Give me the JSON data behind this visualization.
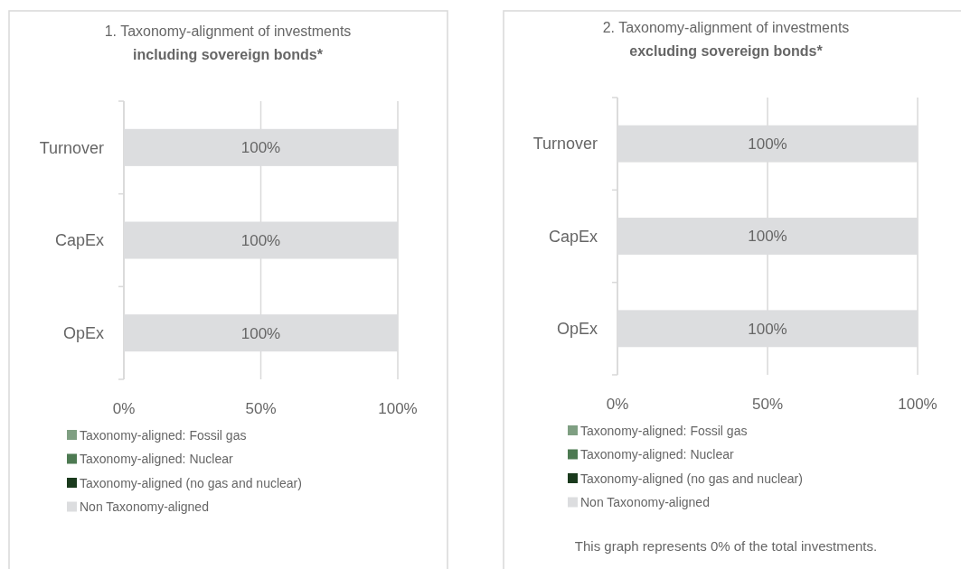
{
  "chart_data": [
    {
      "type": "bar",
      "orientation": "horizontal",
      "stacked": true,
      "title": "1. Taxonomy-alignment of investments",
      "subtitle": "including sovereign bonds*",
      "categories": [
        "Turnover",
        "CapEx",
        "OpEx"
      ],
      "xlim": [
        0,
        100
      ],
      "xticks": [
        {
          "value": 0,
          "label": "0%"
        },
        {
          "value": 50,
          "label": "50%"
        },
        {
          "value": 100,
          "label": "100%"
        }
      ],
      "grid": "x",
      "legend": "bottom",
      "series": [
        {
          "name": "Taxonomy-aligned: Fossil gas",
          "color": "#7f9f82",
          "values": [
            0,
            0,
            0
          ],
          "value_labels": [
            null,
            null,
            null
          ]
        },
        {
          "name": "Taxonomy-aligned: Nuclear",
          "color": "#4d7a52",
          "values": [
            0,
            0,
            0
          ],
          "value_labels": [
            null,
            null,
            null
          ]
        },
        {
          "name": "Taxonomy-aligned (no gas and nuclear)",
          "color": "#1a3a1d",
          "values": [
            0,
            0,
            0
          ],
          "value_labels": [
            null,
            null,
            null
          ]
        },
        {
          "name": "Non Taxonomy-aligned",
          "color": "#dcdddf",
          "values": [
            100,
            100,
            100
          ],
          "value_labels": [
            "100%",
            "100%",
            "100%"
          ]
        }
      ]
    },
    {
      "type": "bar",
      "orientation": "horizontal",
      "stacked": true,
      "title": "2. Taxonomy-alignment of investments",
      "subtitle": "excluding sovereign bonds*",
      "categories": [
        "Turnover",
        "CapEx",
        "OpEx"
      ],
      "xlim": [
        0,
        100
      ],
      "xticks": [
        {
          "value": 0,
          "label": "0%"
        },
        {
          "value": 50,
          "label": "50%"
        },
        {
          "value": 100,
          "label": "100%"
        }
      ],
      "grid": "x",
      "legend": "bottom",
      "annotations": [
        "This graph represents 0% of the total investments."
      ],
      "series": [
        {
          "name": "Taxonomy-aligned: Fossil gas",
          "color": "#7f9f82",
          "values": [
            0,
            0,
            0
          ],
          "value_labels": [
            null,
            null,
            null
          ]
        },
        {
          "name": "Taxonomy-aligned: Nuclear",
          "color": "#4d7a52",
          "values": [
            0,
            0,
            0
          ],
          "value_labels": [
            null,
            null,
            null
          ]
        },
        {
          "name": "Taxonomy-aligned (no gas and nuclear)",
          "color": "#1a3a1d",
          "values": [
            0,
            0,
            0
          ],
          "value_labels": [
            null,
            null,
            null
          ]
        },
        {
          "name": "Non Taxonomy-aligned",
          "color": "#dcdddf",
          "values": [
            100,
            100,
            100
          ],
          "value_labels": [
            "100%",
            "100%",
            "100%"
          ]
        }
      ]
    }
  ]
}
